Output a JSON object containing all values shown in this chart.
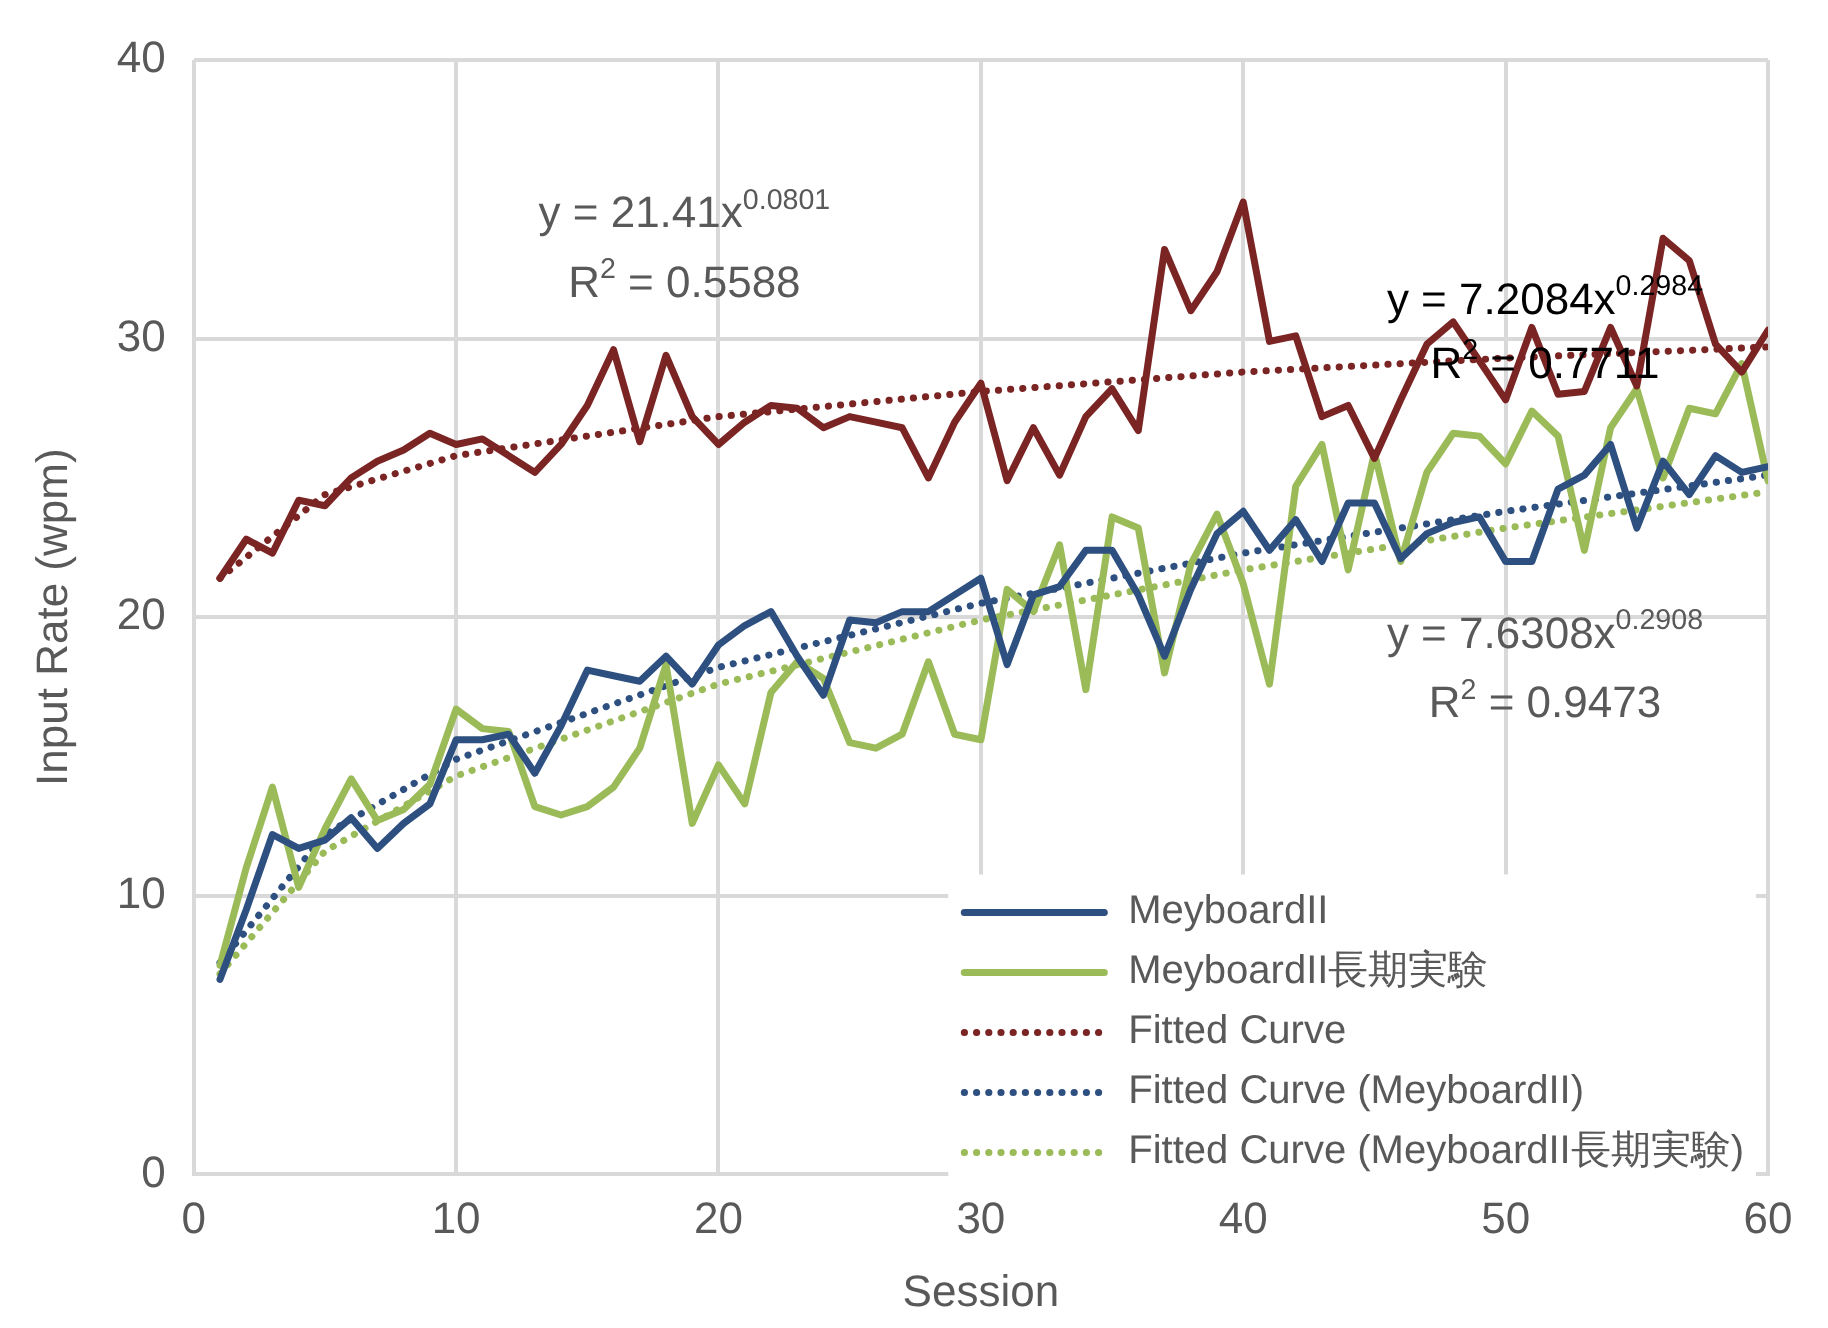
{
  "chart_data": {
    "type": "line",
    "xlabel": "Session",
    "ylabel": "Input Rate (wpm)",
    "x": [
      1,
      2,
      3,
      4,
      5,
      6,
      7,
      8,
      9,
      10,
      11,
      12,
      13,
      14,
      15,
      16,
      17,
      18,
      19,
      20,
      21,
      22,
      23,
      24,
      25,
      26,
      27,
      28,
      29,
      30,
      31,
      32,
      33,
      34,
      35,
      36,
      37,
      38,
      39,
      40,
      41,
      42,
      43,
      44,
      45,
      46,
      47,
      48,
      49,
      50,
      51,
      52,
      53,
      54,
      55,
      56,
      57,
      58,
      59,
      60
    ],
    "xlim": [
      0,
      60
    ],
    "xticks": [
      0,
      10,
      20,
      30,
      40,
      50,
      60
    ],
    "ylim": [
      0,
      40
    ],
    "yticks": [
      0,
      10,
      20,
      30,
      40
    ],
    "grid": true,
    "legend": "bottom right",
    "marker": "none",
    "series": [
      {
        "color": "#7b2424",
        "values": [
          21.4,
          22.8,
          22.3,
          24.2,
          24.0,
          25.0,
          25.6,
          26.0,
          26.6,
          26.2,
          26.4,
          25.8,
          25.2,
          26.2,
          27.6,
          29.6,
          26.3,
          29.4,
          27.2,
          26.2,
          27.0,
          27.6,
          27.5,
          26.8,
          27.2,
          27.0,
          26.8,
          25.0,
          27.0,
          28.4,
          24.9,
          26.8,
          25.1,
          27.2,
          28.2,
          26.7,
          33.2,
          31.0,
          32.4,
          34.9,
          29.9,
          30.1,
          27.2,
          27.6,
          25.7,
          27.8,
          29.8,
          30.6,
          29.2,
          27.8,
          30.4,
          28.0,
          28.1,
          30.4,
          28.3,
          33.6,
          32.8,
          29.8,
          28.8,
          30.3
        ]
      },
      {
        "name": "MeyboardII",
        "color": "#2e5080",
        "values": [
          7.0,
          9.5,
          12.2,
          11.7,
          12.0,
          12.8,
          11.7,
          12.6,
          13.3,
          15.6,
          15.6,
          15.8,
          14.4,
          16.1,
          18.1,
          17.9,
          17.7,
          18.6,
          17.6,
          19.0,
          19.7,
          20.2,
          18.6,
          17.2,
          19.9,
          19.8,
          20.2,
          20.2,
          20.8,
          21.4,
          18.3,
          20.8,
          21.1,
          22.4,
          22.4,
          20.8,
          18.6,
          21.0,
          23.0,
          23.8,
          22.4,
          23.5,
          22.0,
          24.1,
          24.1,
          22.1,
          23.0,
          23.4,
          23.6,
          22.0,
          22.0,
          24.6,
          25.1,
          26.2,
          23.2,
          25.6,
          24.4,
          25.8,
          25.2,
          25.4
        ]
      },
      {
        "name": "MeyboardII長期実験",
        "color": "#9bbb59",
        "values": [
          7.5,
          11.0,
          13.9,
          10.3,
          12.4,
          14.2,
          12.7,
          13.1,
          14.0,
          16.7,
          16.0,
          15.9,
          13.2,
          12.9,
          13.2,
          13.9,
          15.3,
          18.3,
          12.6,
          14.7,
          13.3,
          17.3,
          18.4,
          17.8,
          15.5,
          15.3,
          15.8,
          18.4,
          15.8,
          15.6,
          21.0,
          20.2,
          22.6,
          17.4,
          23.6,
          23.2,
          18.0,
          21.9,
          23.7,
          21.2,
          17.6,
          24.7,
          26.2,
          21.7,
          25.9,
          22.0,
          25.2,
          26.6,
          26.5,
          25.5,
          27.4,
          26.5,
          22.4,
          26.8,
          28.2,
          25.0,
          27.5,
          27.3,
          29.1,
          24.9
        ]
      },
      {
        "name": "Fitted Curve",
        "color": "#7b2424",
        "line_style": "dotted",
        "x": [
          1,
          5,
          10,
          20,
          30,
          40,
          50,
          60
        ],
        "values": [
          21.4,
          24.4,
          25.8,
          27.2,
          28.1,
          28.8,
          29.3,
          29.7
        ]
      },
      {
        "name": "Fitted Curve (MeyboardII)",
        "color": "#2e5080",
        "line_style": "dotted",
        "x": [
          1,
          5,
          10,
          20,
          30,
          40,
          50,
          60
        ],
        "values": [
          7.6,
          12.2,
          14.9,
          18.2,
          20.5,
          22.3,
          23.8,
          25.1
        ]
      },
      {
        "name": "Fitted Curve (MeyboardII長期実験)",
        "color": "#9bbb59",
        "line_style": "dotted",
        "x": [
          1,
          5,
          10,
          20,
          30,
          40,
          50,
          60
        ],
        "values": [
          7.2,
          11.6,
          14.3,
          17.6,
          19.9,
          21.7,
          23.2,
          24.5
        ]
      }
    ],
    "annotations": [
      "y = 21.41x$^{0.0801}$",
      "R$^{2}$ = 0.5588",
      "y = 7.2084x$^{0.2984}$",
      "R$^{2}$ = 0.7711",
      "y = 7.6308x$^{0.2908}$",
      "R$^{2}$ = 0.9473"
    ]
  }
}
